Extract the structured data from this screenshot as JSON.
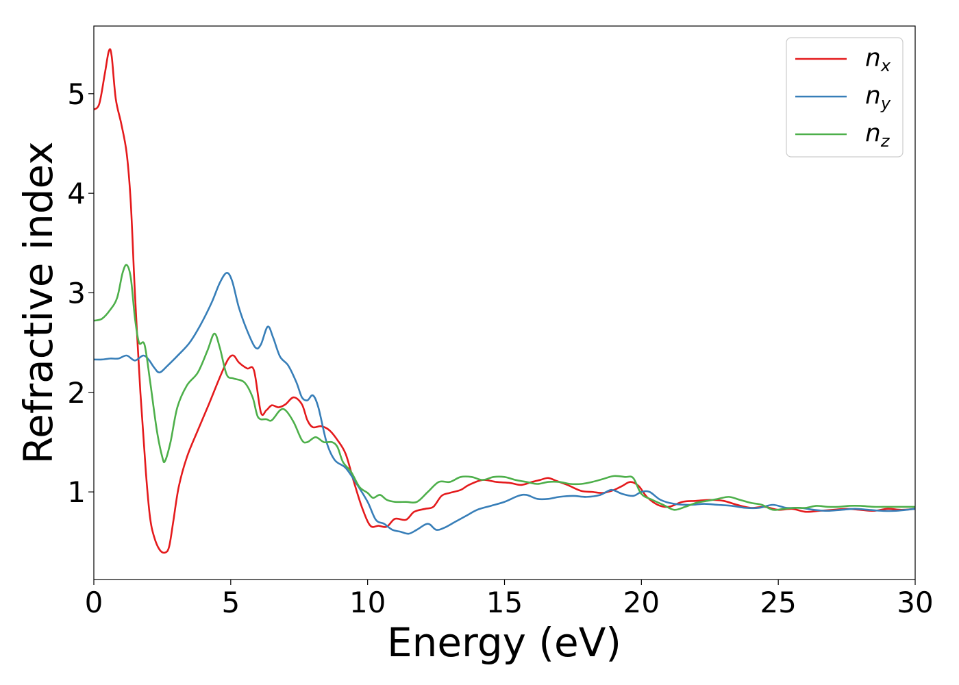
{
  "chart_data": {
    "type": "line",
    "xlabel": "Energy (eV)",
    "ylabel": "Refractive index",
    "xlim": [
      0,
      30
    ],
    "ylim": [
      0.12,
      5.68
    ],
    "xticks": [
      0,
      5,
      10,
      15,
      20,
      25,
      30
    ],
    "yticks": [
      1,
      2,
      3,
      4,
      5
    ],
    "grid": false,
    "legend_position": "top-right",
    "series": [
      {
        "name": "n_x",
        "label_base": "n",
        "label_sub": "x",
        "color": "#e41a1c",
        "points": [
          [
            0,
            4.84
          ],
          [
            0.2,
            4.9
          ],
          [
            0.4,
            5.2
          ],
          [
            0.55,
            5.43
          ],
          [
            0.65,
            5.38
          ],
          [
            0.8,
            4.95
          ],
          [
            1.0,
            4.7
          ],
          [
            1.2,
            4.4
          ],
          [
            1.35,
            3.9
          ],
          [
            1.5,
            3.0
          ],
          [
            1.7,
            2.0
          ],
          [
            1.9,
            1.2
          ],
          [
            2.05,
            0.75
          ],
          [
            2.2,
            0.55
          ],
          [
            2.4,
            0.42
          ],
          [
            2.6,
            0.39
          ],
          [
            2.75,
            0.45
          ],
          [
            2.9,
            0.7
          ],
          [
            3.1,
            1.05
          ],
          [
            3.4,
            1.35
          ],
          [
            3.8,
            1.62
          ],
          [
            4.2,
            1.88
          ],
          [
            4.6,
            2.15
          ],
          [
            4.9,
            2.33
          ],
          [
            5.1,
            2.37
          ],
          [
            5.3,
            2.3
          ],
          [
            5.6,
            2.24
          ],
          [
            5.85,
            2.22
          ],
          [
            6.1,
            1.8
          ],
          [
            6.3,
            1.82
          ],
          [
            6.5,
            1.87
          ],
          [
            6.75,
            1.85
          ],
          [
            7.0,
            1.88
          ],
          [
            7.3,
            1.95
          ],
          [
            7.6,
            1.88
          ],
          [
            7.8,
            1.72
          ],
          [
            8.0,
            1.65
          ],
          [
            8.3,
            1.66
          ],
          [
            8.6,
            1.62
          ],
          [
            8.9,
            1.52
          ],
          [
            9.2,
            1.38
          ],
          [
            9.5,
            1.1
          ],
          [
            9.8,
            0.84
          ],
          [
            10.1,
            0.66
          ],
          [
            10.4,
            0.66
          ],
          [
            10.7,
            0.65
          ],
          [
            11.0,
            0.73
          ],
          [
            11.4,
            0.72
          ],
          [
            11.7,
            0.8
          ],
          [
            12.1,
            0.83
          ],
          [
            12.4,
            0.85
          ],
          [
            12.7,
            0.96
          ],
          [
            13.0,
            0.99
          ],
          [
            13.4,
            1.02
          ],
          [
            13.7,
            1.07
          ],
          [
            14.2,
            1.12
          ],
          [
            14.7,
            1.1
          ],
          [
            15.2,
            1.09
          ],
          [
            15.6,
            1.07
          ],
          [
            16.0,
            1.1
          ],
          [
            16.3,
            1.12
          ],
          [
            16.6,
            1.14
          ],
          [
            16.9,
            1.11
          ],
          [
            17.3,
            1.07
          ],
          [
            17.8,
            1.01
          ],
          [
            18.2,
            1.0
          ],
          [
            18.6,
            0.99
          ],
          [
            19.0,
            1.02
          ],
          [
            19.3,
            1.06
          ],
          [
            19.6,
            1.1
          ],
          [
            19.9,
            1.06
          ],
          [
            20.2,
            0.95
          ],
          [
            20.6,
            0.87
          ],
          [
            21.0,
            0.85
          ],
          [
            21.5,
            0.9
          ],
          [
            22.0,
            0.91
          ],
          [
            22.5,
            0.92
          ],
          [
            23.0,
            0.91
          ],
          [
            23.5,
            0.87
          ],
          [
            24.0,
            0.84
          ],
          [
            24.5,
            0.85
          ],
          [
            25.0,
            0.82
          ],
          [
            25.5,
            0.83
          ],
          [
            26.0,
            0.8
          ],
          [
            26.5,
            0.81
          ],
          [
            27.0,
            0.82
          ],
          [
            27.5,
            0.83
          ],
          [
            28.0,
            0.82
          ],
          [
            28.5,
            0.81
          ],
          [
            29.0,
            0.83
          ],
          [
            29.5,
            0.82
          ],
          [
            30,
            0.83
          ]
        ]
      },
      {
        "name": "n_y",
        "label_base": "n",
        "label_sub": "y",
        "color": "#377eb8",
        "points": [
          [
            0,
            2.33
          ],
          [
            0.3,
            2.33
          ],
          [
            0.6,
            2.34
          ],
          [
            0.9,
            2.34
          ],
          [
            1.2,
            2.37
          ],
          [
            1.5,
            2.32
          ],
          [
            1.8,
            2.37
          ],
          [
            2.0,
            2.33
          ],
          [
            2.2,
            2.25
          ],
          [
            2.4,
            2.2
          ],
          [
            2.7,
            2.27
          ],
          [
            3.1,
            2.38
          ],
          [
            3.5,
            2.5
          ],
          [
            3.9,
            2.68
          ],
          [
            4.3,
            2.9
          ],
          [
            4.6,
            3.1
          ],
          [
            4.85,
            3.2
          ],
          [
            5.05,
            3.12
          ],
          [
            5.3,
            2.85
          ],
          [
            5.6,
            2.62
          ],
          [
            5.9,
            2.45
          ],
          [
            6.1,
            2.48
          ],
          [
            6.35,
            2.66
          ],
          [
            6.55,
            2.55
          ],
          [
            6.8,
            2.36
          ],
          [
            7.1,
            2.27
          ],
          [
            7.4,
            2.1
          ],
          [
            7.6,
            1.95
          ],
          [
            7.8,
            1.92
          ],
          [
            8.0,
            1.97
          ],
          [
            8.2,
            1.85
          ],
          [
            8.5,
            1.5
          ],
          [
            8.8,
            1.32
          ],
          [
            9.2,
            1.24
          ],
          [
            9.6,
            1.08
          ],
          [
            10.0,
            0.9
          ],
          [
            10.3,
            0.72
          ],
          [
            10.6,
            0.68
          ],
          [
            10.9,
            0.62
          ],
          [
            11.2,
            0.6
          ],
          [
            11.5,
            0.58
          ],
          [
            11.8,
            0.62
          ],
          [
            12.2,
            0.68
          ],
          [
            12.5,
            0.62
          ],
          [
            12.8,
            0.64
          ],
          [
            13.2,
            0.7
          ],
          [
            13.6,
            0.76
          ],
          [
            14.0,
            0.82
          ],
          [
            14.5,
            0.86
          ],
          [
            15.0,
            0.9
          ],
          [
            15.5,
            0.96
          ],
          [
            15.8,
            0.97
          ],
          [
            16.2,
            0.93
          ],
          [
            16.6,
            0.93
          ],
          [
            17.0,
            0.95
          ],
          [
            17.5,
            0.96
          ],
          [
            18.0,
            0.95
          ],
          [
            18.5,
            0.97
          ],
          [
            18.9,
            1.02
          ],
          [
            19.3,
            0.98
          ],
          [
            19.7,
            0.96
          ],
          [
            20.0,
            1.0
          ],
          [
            20.3,
            1.0
          ],
          [
            20.7,
            0.92
          ],
          [
            21.2,
            0.88
          ],
          [
            21.8,
            0.87
          ],
          [
            22.3,
            0.88
          ],
          [
            22.8,
            0.87
          ],
          [
            23.3,
            0.86
          ],
          [
            23.8,
            0.84
          ],
          [
            24.3,
            0.84
          ],
          [
            24.8,
            0.87
          ],
          [
            25.3,
            0.84
          ],
          [
            25.8,
            0.84
          ],
          [
            26.3,
            0.82
          ],
          [
            26.8,
            0.81
          ],
          [
            27.3,
            0.82
          ],
          [
            27.8,
            0.83
          ],
          [
            28.3,
            0.82
          ],
          [
            28.8,
            0.81
          ],
          [
            29.3,
            0.81
          ],
          [
            30,
            0.83
          ]
        ]
      },
      {
        "name": "n_z",
        "label_base": "n",
        "label_sub": "z",
        "color": "#4daf4a",
        "points": [
          [
            0,
            2.72
          ],
          [
            0.3,
            2.74
          ],
          [
            0.6,
            2.83
          ],
          [
            0.85,
            2.95
          ],
          [
            1.05,
            3.2
          ],
          [
            1.2,
            3.28
          ],
          [
            1.35,
            3.15
          ],
          [
            1.5,
            2.75
          ],
          [
            1.65,
            2.5
          ],
          [
            1.85,
            2.48
          ],
          [
            2.05,
            2.12
          ],
          [
            2.3,
            1.62
          ],
          [
            2.5,
            1.35
          ],
          [
            2.6,
            1.31
          ],
          [
            2.8,
            1.5
          ],
          [
            3.05,
            1.85
          ],
          [
            3.4,
            2.07
          ],
          [
            3.8,
            2.2
          ],
          [
            4.15,
            2.42
          ],
          [
            4.4,
            2.59
          ],
          [
            4.6,
            2.45
          ],
          [
            4.85,
            2.18
          ],
          [
            5.1,
            2.14
          ],
          [
            5.5,
            2.1
          ],
          [
            5.8,
            1.95
          ],
          [
            6.0,
            1.75
          ],
          [
            6.3,
            1.73
          ],
          [
            6.5,
            1.72
          ],
          [
            6.8,
            1.82
          ],
          [
            7.0,
            1.82
          ],
          [
            7.3,
            1.7
          ],
          [
            7.6,
            1.52
          ],
          [
            7.8,
            1.5
          ],
          [
            8.1,
            1.55
          ],
          [
            8.4,
            1.5
          ],
          [
            8.7,
            1.5
          ],
          [
            8.9,
            1.45
          ],
          [
            9.1,
            1.3
          ],
          [
            9.4,
            1.2
          ],
          [
            9.7,
            1.05
          ],
          [
            10.0,
            0.99
          ],
          [
            10.2,
            0.94
          ],
          [
            10.45,
            0.97
          ],
          [
            10.7,
            0.92
          ],
          [
            11.0,
            0.9
          ],
          [
            11.4,
            0.9
          ],
          [
            11.8,
            0.9
          ],
          [
            12.2,
            1.0
          ],
          [
            12.6,
            1.1
          ],
          [
            13.0,
            1.1
          ],
          [
            13.4,
            1.15
          ],
          [
            13.8,
            1.15
          ],
          [
            14.2,
            1.12
          ],
          [
            14.6,
            1.15
          ],
          [
            15.0,
            1.15
          ],
          [
            15.4,
            1.12
          ],
          [
            15.8,
            1.1
          ],
          [
            16.2,
            1.08
          ],
          [
            16.6,
            1.1
          ],
          [
            17.0,
            1.1
          ],
          [
            17.4,
            1.08
          ],
          [
            17.8,
            1.08
          ],
          [
            18.2,
            1.1
          ],
          [
            18.6,
            1.13
          ],
          [
            19.0,
            1.16
          ],
          [
            19.4,
            1.15
          ],
          [
            19.7,
            1.14
          ],
          [
            20.0,
            0.98
          ],
          [
            20.4,
            0.92
          ],
          [
            20.8,
            0.87
          ],
          [
            21.2,
            0.82
          ],
          [
            21.6,
            0.85
          ],
          [
            22.0,
            0.89
          ],
          [
            22.4,
            0.91
          ],
          [
            22.8,
            0.93
          ],
          [
            23.2,
            0.95
          ],
          [
            23.6,
            0.92
          ],
          [
            24.0,
            0.89
          ],
          [
            24.4,
            0.87
          ],
          [
            24.8,
            0.82
          ],
          [
            25.2,
            0.83
          ],
          [
            25.6,
            0.84
          ],
          [
            26.0,
            0.84
          ],
          [
            26.4,
            0.86
          ],
          [
            26.8,
            0.85
          ],
          [
            27.2,
            0.85
          ],
          [
            27.6,
            0.86
          ],
          [
            28.0,
            0.86
          ],
          [
            28.5,
            0.85
          ],
          [
            29.0,
            0.85
          ],
          [
            29.5,
            0.85
          ],
          [
            30,
            0.85
          ]
        ]
      }
    ]
  }
}
